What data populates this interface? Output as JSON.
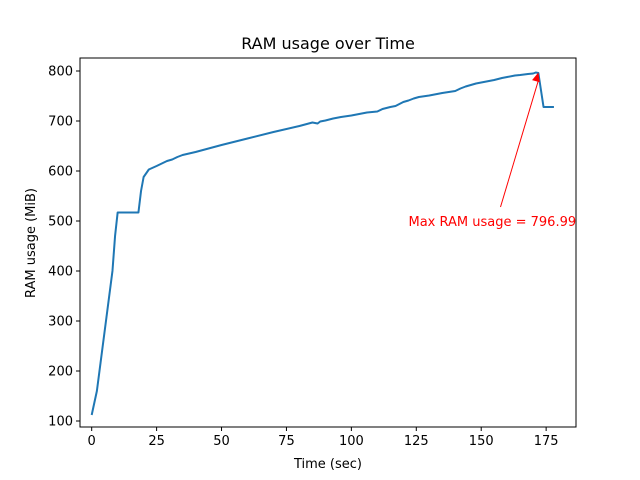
{
  "chart_data": {
    "type": "line",
    "title": "RAM usage over Time",
    "xlabel": "Time (sec)",
    "ylabel": "RAM usage (MiB)",
    "xlim": [
      -4.5,
      186.5
    ],
    "ylim": [
      88,
      826
    ],
    "xticks": [
      0,
      25,
      50,
      75,
      100,
      125,
      150,
      175
    ],
    "yticks": [
      100,
      200,
      300,
      400,
      500,
      600,
      700,
      800
    ],
    "grid": false,
    "line_color": "#1f77b4",
    "series": [
      {
        "x": [
          0,
          2,
          4,
          6,
          8,
          9,
          10,
          18,
          19,
          20,
          22,
          25,
          27,
          29,
          31,
          33,
          35,
          40,
          50,
          60,
          70,
          80,
          85,
          87,
          88,
          90,
          93,
          96,
          100,
          103,
          106,
          110,
          112,
          115,
          117,
          120,
          122,
          124,
          126,
          130,
          135,
          140,
          142,
          144,
          148,
          150,
          155,
          158,
          160,
          163,
          165,
          168,
          170,
          171,
          172,
          174,
          176,
          178
        ],
        "y": [
          112,
          160,
          240,
          320,
          400,
          470,
          517,
          517,
          560,
          588,
          603,
          610,
          615,
          620,
          623,
          628,
          632,
          638,
          652,
          665,
          678,
          690,
          697,
          695,
          699,
          701,
          705,
          708,
          711,
          714,
          717,
          719,
          724,
          728,
          730,
          738,
          741,
          745,
          748,
          751,
          756,
          760,
          765,
          769,
          775,
          777,
          782,
          786,
          788,
          791,
          792,
          794,
          795,
          797,
          796,
          728,
          728,
          728
        ]
      }
    ],
    "annotation": {
      "text": "Max RAM usage = 796.99",
      "color": "#ff0000",
      "point": [
        172,
        796.99
      ],
      "text_anchor": [
        122,
        500
      ]
    }
  }
}
